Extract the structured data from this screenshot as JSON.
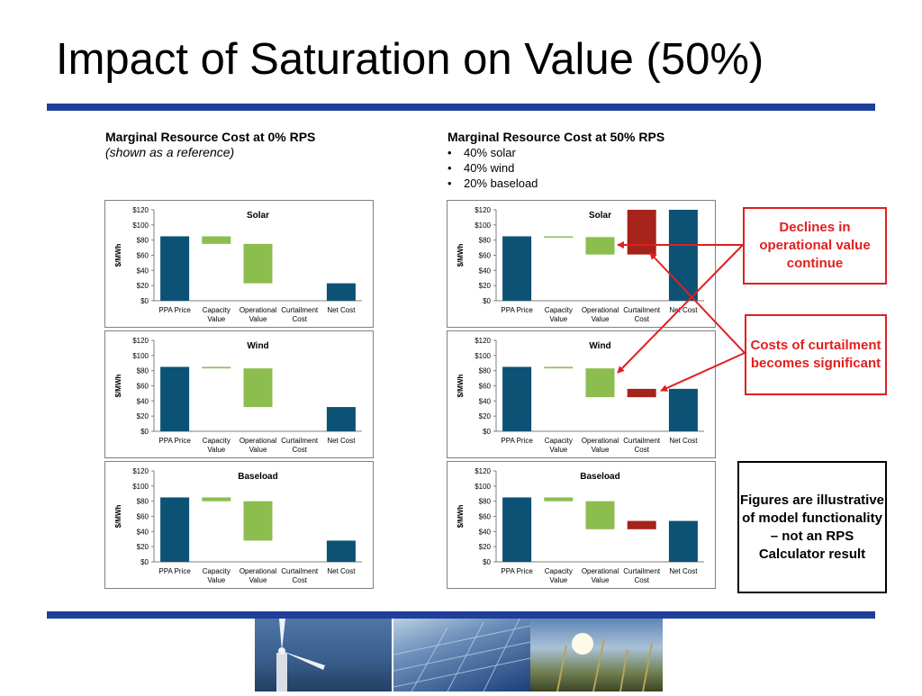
{
  "title": "Impact of Saturation on Value (50%)",
  "left_header": {
    "heading": "Marginal Resource Cost at 0% RPS",
    "subheading": "(shown as a reference)"
  },
  "right_header": {
    "heading": "Marginal Resource Cost at 50% RPS",
    "bullets": [
      "40% solar",
      "40% wind",
      "20% baseload"
    ]
  },
  "callouts": {
    "operational": "Declines in operational value continue",
    "curtailment": "Costs of curtailment becomes significant",
    "disclaimer": "Figures are illustrative of model functionality – not an RPS Calculator result"
  },
  "colors": {
    "rule": "#1f3f9a",
    "ppa": "#0b5275",
    "value": "#8cbd4f",
    "curtailment": "#a5231a",
    "callout": "#e0201f"
  },
  "chart_data": [
    {
      "type": "bar",
      "panel": "left-solar",
      "title": "Solar",
      "ylabel": "$/MWh",
      "categories": [
        [
          "PPA Price"
        ],
        [
          "Capacity",
          "Value"
        ],
        [
          "Operational",
          "Value"
        ],
        [
          "Curtailment",
          "Cost"
        ],
        [
          "Net Cost"
        ]
      ],
      "yticks": [
        "$0",
        "$20",
        "$40",
        "$60",
        "$80",
        "$100",
        "$120"
      ],
      "ylim": [
        0,
        120
      ],
      "bars": [
        {
          "low": 0,
          "high": 85,
          "kind": "ppa"
        },
        {
          "low": 75,
          "high": 85,
          "kind": "value"
        },
        {
          "low": 23,
          "high": 75,
          "kind": "value"
        },
        null,
        {
          "low": 0,
          "high": 23,
          "kind": "ppa"
        }
      ]
    },
    {
      "type": "bar",
      "panel": "right-solar",
      "title": "Solar",
      "ylabel": "$/MWh",
      "categories": [
        [
          "PPA Price"
        ],
        [
          "Capacity",
          "Value"
        ],
        [
          "Operational",
          "Value"
        ],
        [
          "Curtailment",
          "Cost"
        ],
        [
          "Net Cost"
        ]
      ],
      "yticks": [
        "$0",
        "$20",
        "$40",
        "$60",
        "$80",
        "$100",
        "$120"
      ],
      "ylim": [
        0,
        120
      ],
      "bars": [
        {
          "low": 0,
          "high": 85,
          "kind": "ppa"
        },
        {
          "low": 84,
          "high": 85,
          "kind": "value"
        },
        {
          "low": 61,
          "high": 84,
          "kind": "value"
        },
        {
          "low": 61,
          "high": 120,
          "kind": "curtailment"
        },
        {
          "low": 0,
          "high": 120,
          "kind": "ppa"
        }
      ]
    },
    {
      "type": "bar",
      "panel": "left-wind",
      "title": "Wind",
      "ylabel": "$/MWh",
      "categories": [
        [
          "PPA Price"
        ],
        [
          "Capacity",
          "Value"
        ],
        [
          "Operational",
          "Value"
        ],
        [
          "Curtailment",
          "Cost"
        ],
        [
          "Net Cost"
        ]
      ],
      "yticks": [
        "$0",
        "$20",
        "$40",
        "$60",
        "$80",
        "$100",
        "$120"
      ],
      "ylim": [
        0,
        120
      ],
      "bars": [
        {
          "low": 0,
          "high": 85,
          "kind": "ppa"
        },
        {
          "low": 83,
          "high": 85,
          "kind": "value"
        },
        {
          "low": 32,
          "high": 83,
          "kind": "value"
        },
        null,
        {
          "low": 0,
          "high": 32,
          "kind": "ppa"
        }
      ]
    },
    {
      "type": "bar",
      "panel": "right-wind",
      "title": "Wind",
      "ylabel": "$/MWh",
      "categories": [
        [
          "PPA Price"
        ],
        [
          "Capacity",
          "Value"
        ],
        [
          "Operational",
          "Value"
        ],
        [
          "Curtailment",
          "Cost"
        ],
        [
          "Net Cost"
        ]
      ],
      "yticks": [
        "$0",
        "$20",
        "$40",
        "$60",
        "$80",
        "$100",
        "$120"
      ],
      "ylim": [
        0,
        120
      ],
      "bars": [
        {
          "low": 0,
          "high": 85,
          "kind": "ppa"
        },
        {
          "low": 83,
          "high": 85,
          "kind": "value"
        },
        {
          "low": 45,
          "high": 83,
          "kind": "value"
        },
        {
          "low": 45,
          "high": 56,
          "kind": "curtailment"
        },
        {
          "low": 0,
          "high": 56,
          "kind": "ppa"
        }
      ]
    },
    {
      "type": "bar",
      "panel": "left-baseload",
      "title": "Baseload",
      "ylabel": "$/MWh",
      "categories": [
        [
          "PPA Price"
        ],
        [
          "Capacity",
          "Value"
        ],
        [
          "Operational",
          "Value"
        ],
        [
          "Curtailment",
          "Cost"
        ],
        [
          "Net Cost"
        ]
      ],
      "yticks": [
        "$0",
        "$20",
        "$40",
        "$60",
        "$80",
        "$100",
        "$120"
      ],
      "ylim": [
        0,
        120
      ],
      "bars": [
        {
          "low": 0,
          "high": 85,
          "kind": "ppa"
        },
        {
          "low": 80,
          "high": 85,
          "kind": "value"
        },
        {
          "low": 28,
          "high": 80,
          "kind": "value"
        },
        null,
        {
          "low": 0,
          "high": 28,
          "kind": "ppa"
        }
      ]
    },
    {
      "type": "bar",
      "panel": "right-baseload",
      "title": "Baseload",
      "ylabel": "$/MWh",
      "categories": [
        [
          "PPA Price"
        ],
        [
          "Capacity",
          "Value"
        ],
        [
          "Operational",
          "Value"
        ],
        [
          "Curtailment",
          "Cost"
        ],
        [
          "Net Cost"
        ]
      ],
      "yticks": [
        "$0",
        "$20",
        "$40",
        "$60",
        "$80",
        "$100",
        "$120"
      ],
      "ylim": [
        0,
        120
      ],
      "bars": [
        {
          "low": 0,
          "high": 85,
          "kind": "ppa"
        },
        {
          "low": 80,
          "high": 85,
          "kind": "value"
        },
        {
          "low": 43,
          "high": 80,
          "kind": "value"
        },
        {
          "low": 43,
          "high": 54,
          "kind": "curtailment"
        },
        {
          "low": 0,
          "high": 54,
          "kind": "ppa"
        }
      ]
    }
  ]
}
